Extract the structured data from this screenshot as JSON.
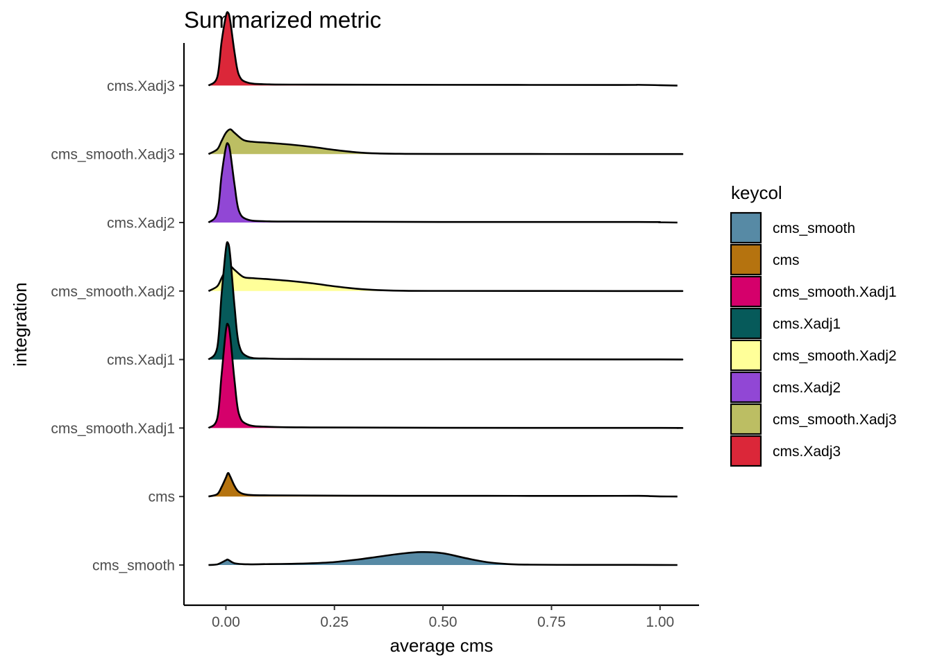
{
  "chart_data": {
    "type": "ridgeline density",
    "title": "Summarized metric",
    "xlabel": "average cms",
    "ylabel": "integration",
    "xlim": [
      -0.1,
      1.1
    ],
    "xticks": [
      0.0,
      0.25,
      0.5,
      0.75,
      1.0
    ],
    "xtick_labels": [
      "0.00",
      "0.25",
      "0.50",
      "0.75",
      "1.00"
    ],
    "grid": false,
    "legend": {
      "title": "keycol",
      "position": "right",
      "entries": [
        {
          "label": "cms_smooth",
          "color": "#578AA5"
        },
        {
          "label": "cms",
          "color": "#B5730F"
        },
        {
          "label": "cms_smooth.Xadj1",
          "color": "#D5006B"
        },
        {
          "label": "cms.Xadj1",
          "color": "#065A5A"
        },
        {
          "label": "cms_smooth.Xadj2",
          "color": "#FFFF99"
        },
        {
          "label": "cms.Xadj2",
          "color": "#9147D5"
        },
        {
          "label": "cms_smooth.Xadj3",
          "color": "#BCBE63"
        },
        {
          "label": "cms.Xadj3",
          "color": "#DB2739"
        }
      ]
    },
    "categories": [
      "cms_smooth",
      "cms",
      "cms_smooth.Xadj1",
      "cms.Xadj1",
      "cms_smooth.Xadj2",
      "cms.Xadj2",
      "cms_smooth.Xadj3",
      "cms.Xadj3"
    ],
    "x_range": [
      -0.04,
      1.04
    ],
    "series": [
      {
        "category": "cms_smooth",
        "color": "#578AA5",
        "x": [
          -0.04,
          -0.02,
          0.0,
          0.005,
          0.02,
          0.05,
          0.1,
          0.15,
          0.2,
          0.25,
          0.3,
          0.35,
          0.4,
          0.45,
          0.5,
          0.55,
          0.6,
          0.65,
          0.7,
          0.8,
          0.9,
          1.0,
          1.04
        ],
        "density": [
          0.0,
          0.05,
          0.4,
          0.45,
          0.15,
          0.06,
          0.08,
          0.1,
          0.15,
          0.25,
          0.45,
          0.7,
          0.95,
          1.1,
          1.0,
          0.6,
          0.25,
          0.08,
          0.03,
          0.01,
          0.01,
          0.005,
          0.0
        ]
      },
      {
        "category": "cms",
        "color": "#B5730F",
        "x": [
          -0.04,
          -0.02,
          -0.01,
          0.0,
          0.005,
          0.01,
          0.02,
          0.03,
          0.05,
          0.1,
          0.2,
          0.4,
          0.6,
          0.8,
          0.95,
          0.98,
          1.0,
          1.04
        ],
        "density": [
          0.0,
          0.2,
          0.8,
          1.6,
          2.0,
          1.7,
          0.9,
          0.4,
          0.15,
          0.1,
          0.08,
          0.06,
          0.06,
          0.05,
          0.06,
          0.03,
          0.01,
          0.0
        ]
      },
      {
        "category": "cms_smooth.Xadj1",
        "color": "#D5006B",
        "x": [
          -0.04,
          -0.02,
          -0.01,
          0.0,
          0.005,
          0.01,
          0.02,
          0.03,
          0.05,
          0.1,
          0.2,
          0.5,
          1.0,
          1.04
        ],
        "density": [
          0.0,
          0.8,
          4.5,
          8.3,
          8.8,
          7.8,
          4.0,
          1.2,
          0.3,
          0.1,
          0.05,
          0.02,
          0.01,
          0.0
        ]
      },
      {
        "category": "cms.Xadj1",
        "color": "#065A5A",
        "x": [
          -0.04,
          -0.02,
          -0.01,
          0.0,
          0.005,
          0.01,
          0.02,
          0.03,
          0.05,
          0.1,
          0.2,
          0.5,
          1.0,
          1.04
        ],
        "density": [
          0.0,
          1.0,
          5.5,
          9.4,
          9.9,
          8.8,
          4.5,
          1.3,
          0.25,
          0.08,
          0.04,
          0.02,
          0.01,
          0.0
        ]
      },
      {
        "category": "cms_smooth.Xadj2",
        "color": "#FFFF99",
        "x": [
          -0.04,
          -0.02,
          -0.01,
          0.0,
          0.01,
          0.02,
          0.04,
          0.06,
          0.1,
          0.15,
          0.2,
          0.25,
          0.3,
          0.35,
          0.4,
          0.5,
          1.0,
          1.04
        ],
        "density": [
          0.0,
          0.4,
          1.1,
          1.8,
          2.1,
          1.8,
          1.2,
          1.1,
          1.0,
          0.85,
          0.65,
          0.4,
          0.2,
          0.08,
          0.03,
          0.01,
          0.0,
          0.0
        ]
      },
      {
        "category": "cms.Xadj2",
        "color": "#9147D5",
        "x": [
          -0.04,
          -0.02,
          -0.01,
          0.0,
          0.005,
          0.01,
          0.02,
          0.03,
          0.05,
          0.1,
          0.2,
          0.5,
          0.95,
          1.0,
          1.04
        ],
        "density": [
          0.0,
          0.8,
          4.0,
          6.4,
          6.7,
          6.0,
          3.2,
          1.0,
          0.25,
          0.1,
          0.08,
          0.05,
          0.05,
          0.02,
          0.0
        ]
      },
      {
        "category": "cms_smooth.Xadj3",
        "color": "#BCBE63",
        "x": [
          -0.04,
          -0.02,
          -0.01,
          0.0,
          0.01,
          0.02,
          0.04,
          0.06,
          0.1,
          0.15,
          0.2,
          0.25,
          0.3,
          0.35,
          0.4,
          0.5,
          1.0,
          1.04
        ],
        "density": [
          0.0,
          0.4,
          1.1,
          1.8,
          2.1,
          1.8,
          1.2,
          1.05,
          0.95,
          0.8,
          0.6,
          0.35,
          0.15,
          0.05,
          0.02,
          0.01,
          0.0,
          0.0
        ]
      },
      {
        "category": "cms.Xadj3",
        "color": "#DB2739",
        "x": [
          -0.04,
          -0.02,
          -0.01,
          0.0,
          0.005,
          0.01,
          0.02,
          0.03,
          0.05,
          0.1,
          0.2,
          0.5,
          0.9,
          0.95,
          1.0,
          1.04
        ],
        "density": [
          0.0,
          0.7,
          3.7,
          5.9,
          6.2,
          5.5,
          2.8,
          0.9,
          0.25,
          0.1,
          0.08,
          0.06,
          0.05,
          0.06,
          0.03,
          0.0
        ]
      }
    ]
  }
}
